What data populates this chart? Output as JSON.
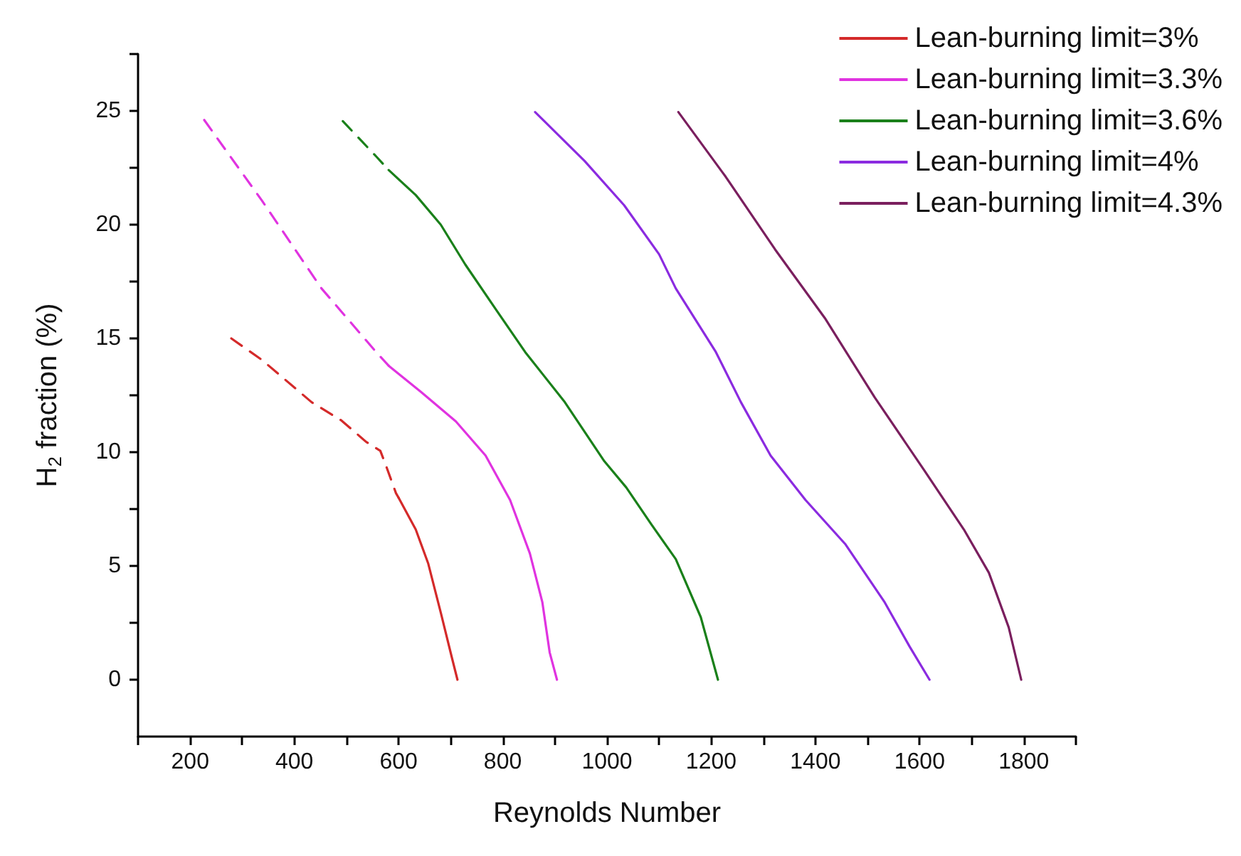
{
  "chart_data": {
    "type": "line",
    "xlabel": "Reynolds Number",
    "ylabel": "H$_{2}$ fraction (%)",
    "xlim": [
      100,
      1900
    ],
    "ylim": [
      -2.5,
      27.5
    ],
    "xticks": [
      {
        "value": 100,
        "label": null
      },
      200,
      {
        "value": 300,
        "label": null
      },
      400,
      {
        "value": 500,
        "label": null
      },
      600,
      {
        "value": 700,
        "label": null
      },
      800,
      {
        "value": 900,
        "label": null
      },
      1000,
      {
        "value": 1100,
        "label": null
      },
      1200,
      {
        "value": 1300,
        "label": null
      },
      1400,
      {
        "value": 1500,
        "label": null
      },
      1600,
      {
        "value": 1700,
        "label": null
      },
      1800,
      {
        "value": 1900,
        "label": null
      }
    ],
    "yticks": [
      0,
      {
        "value": 2.5,
        "label": null
      },
      5,
      {
        "value": 7.5,
        "label": null
      },
      10,
      {
        "value": 12.5,
        "label": null
      },
      15,
      {
        "value": 17.5,
        "label": null
      },
      20,
      {
        "value": 22.5,
        "label": null
      },
      25,
      {
        "value": 27.5,
        "label": null
      }
    ],
    "grid": false,
    "legend": "top right",
    "marker": "none",
    "series": [
      {
        "color": "#d42a2a",
        "line_style": "dashed",
        "x": [
          279,
          338,
          433,
          490,
          538,
          565,
          576,
          595,
          600
        ],
        "values": [
          15.0,
          14.05,
          12.2,
          11.4,
          10.45,
          10.06,
          9.4,
          8.2,
          8.0
        ]
      },
      {
        "name": "Lean-burning limit=3%",
        "color": "#d42a2a",
        "line_style": "solid",
        "x": [
          600,
          633,
          657,
          681,
          702,
          713
        ],
        "values": [
          8.0,
          6.6,
          5.1,
          2.95,
          1.0,
          0
        ]
      },
      {
        "color": "#e033e0",
        "line_style": "dashed",
        "x": [
          227,
          338,
          452,
          557,
          581
        ],
        "values": [
          24.6,
          21.05,
          17.2,
          14.4,
          13.8
        ]
      },
      {
        "name": "Lean-burning limit=3.3%",
        "color": "#e033e0",
        "line_style": "solid",
        "x": [
          581,
          643,
          710,
          767,
          814,
          852,
          876,
          890,
          904
        ],
        "values": [
          13.8,
          12.65,
          11.35,
          9.85,
          7.9,
          5.55,
          3.4,
          1.2,
          0
        ]
      },
      {
        "color": "#1a801a",
        "line_style": "dashed",
        "x": [
          493,
          557,
          581
        ],
        "values": [
          24.55,
          23.0,
          22.4
        ]
      },
      {
        "name": "Lean-burning limit=3.6%",
        "color": "#1a801a",
        "line_style": "solid",
        "x": [
          581,
          633,
          681,
          728,
          786,
          843,
          919,
          995,
          1037,
          1085,
          1132,
          1180,
          1213
        ],
        "values": [
          22.4,
          21.3,
          20.0,
          18.25,
          16.3,
          14.4,
          12.2,
          9.6,
          8.45,
          6.83,
          5.3,
          2.75,
          0
        ]
      },
      {
        "name": "Lean-burning limit=4%",
        "color": "#8b2be0",
        "line_style": "solid",
        "x": [
          862,
          957,
          1033,
          1100,
          1132,
          1209,
          1257,
          1314,
          1381,
          1457,
          1533,
          1581,
          1619
        ],
        "values": [
          24.95,
          22.8,
          20.85,
          18.7,
          17.2,
          14.4,
          12.2,
          9.85,
          7.9,
          5.97,
          3.4,
          1.45,
          0
        ]
      },
      {
        "name": "Lean-burning limit=4.3%",
        "color": "#7a1f5e",
        "line_style": "solid",
        "x": [
          1137,
          1228,
          1323,
          1418,
          1514,
          1609,
          1685,
          1733,
          1771,
          1795
        ],
        "values": [
          24.95,
          22.1,
          18.9,
          15.9,
          12.4,
          9.2,
          6.6,
          4.7,
          2.3,
          0
        ]
      }
    ]
  }
}
